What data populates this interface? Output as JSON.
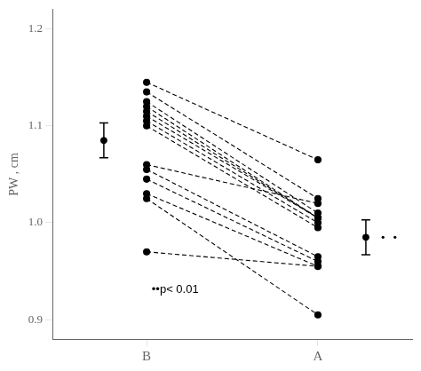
{
  "chart_data": {
    "type": "paired_scatter",
    "categories": [
      "B",
      "A"
    ],
    "ylabel": "PW , cm",
    "annotation": "••p< 0.01",
    "ylim": [
      0.88,
      1.22
    ],
    "yticks": [
      0.9,
      {
        "value": 1.0,
        "label": "1.0"
      },
      1.1,
      1.2
    ],
    "grid": false,
    "color": "#000000",
    "marker": "circle",
    "line_style": "dashed",
    "pairs": [
      [
        1.145,
        1.065
      ],
      [
        1.135,
        1.025
      ],
      [
        1.125,
        1.01
      ],
      [
        1.12,
        1.005
      ],
      [
        1.115,
        1.005
      ],
      [
        1.11,
        1.005
      ],
      [
        1.105,
        1.0
      ],
      [
        1.1,
        0.995
      ],
      [
        1.06,
        1.02
      ],
      [
        1.055,
        0.965
      ],
      [
        1.045,
        0.96
      ],
      [
        1.03,
        0.955
      ],
      [
        0.97,
        0.955
      ],
      [
        1.025,
        0.905
      ]
    ],
    "mean": [
      1.085,
      0.985
    ],
    "sem": [
      0.018,
      0.018
    ]
  }
}
